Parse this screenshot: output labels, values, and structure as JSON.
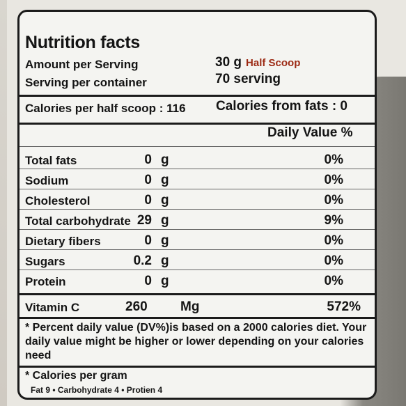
{
  "title": "Nutrition facts",
  "amount_per_serving_label": "Amount per Serving",
  "amount_per_serving_value": "30 g",
  "amount_per_serving_note": "Half Scoop",
  "servings_label": "Serving per container",
  "servings_value": "70 serving",
  "calories_left": "Calories per half scoop : 116",
  "calories_right": "Calories from fats :  0",
  "daily_value_header": "Daily Value %",
  "nutrients": [
    {
      "name": "Total fats",
      "amount": "0",
      "unit": "g",
      "dv": "0%"
    },
    {
      "name": "Sodium",
      "amount": "0",
      "unit": "g",
      "dv": "0%"
    },
    {
      "name": "Cholesterol",
      "amount": "0",
      "unit": "g",
      "dv": "0%"
    },
    {
      "name": "Total carbohydrate",
      "amount": "29",
      "unit": "g",
      "dv": "9%"
    },
    {
      "name": "Dietary fibers",
      "amount": "0",
      "unit": "g",
      "dv": "0%"
    },
    {
      "name": "Sugars",
      "amount": "0.2",
      "unit": "g",
      "dv": "0%"
    },
    {
      "name": "Protein",
      "amount": "0",
      "unit": "g",
      "dv": "0%"
    }
  ],
  "vitamin": {
    "name": "Vitamin C",
    "amount": "260",
    "unit": "Mg",
    "dv": "572%"
  },
  "footnote": "* Percent daily value (DV%)is based on a 2000 calories diet. Your daily value might be higher or lower depending on your calories need",
  "calories_per_gram_label": "* Calories per gram",
  "calories_per_gram_values": "Fat 9 • Carbohydrate 4 • Protien 4"
}
